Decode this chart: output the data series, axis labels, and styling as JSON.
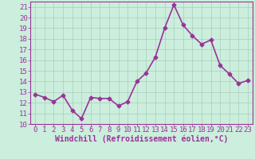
{
  "x": [
    0,
    1,
    2,
    3,
    4,
    5,
    6,
    7,
    8,
    9,
    10,
    11,
    12,
    13,
    14,
    15,
    16,
    17,
    18,
    19,
    20,
    21,
    22,
    23
  ],
  "y": [
    12.8,
    12.5,
    12.1,
    12.7,
    11.3,
    10.5,
    12.5,
    12.4,
    12.4,
    11.7,
    12.1,
    14.0,
    14.8,
    16.3,
    19.0,
    21.2,
    19.3,
    18.3,
    17.5,
    17.9,
    15.5,
    14.7,
    13.8,
    14.1
  ],
  "line_color": "#993399",
  "marker": "D",
  "marker_size": 2.5,
  "linewidth": 1.2,
  "background_color": "#cceedd",
  "grid_color": "#aaccbb",
  "xlabel": "Windchill (Refroidissement éolien,°C)",
  "xlabel_color": "#993399",
  "xlabel_fontsize": 7,
  "tick_color": "#993399",
  "tick_fontsize": 6.5,
  "ylim": [
    10,
    21.5
  ],
  "xlim": [
    -0.5,
    23.5
  ],
  "yticks": [
    10,
    11,
    12,
    13,
    14,
    15,
    16,
    17,
    18,
    19,
    20,
    21
  ],
  "xticks": [
    0,
    1,
    2,
    3,
    4,
    5,
    6,
    7,
    8,
    9,
    10,
    11,
    12,
    13,
    14,
    15,
    16,
    17,
    18,
    19,
    20,
    21,
    22,
    23
  ]
}
